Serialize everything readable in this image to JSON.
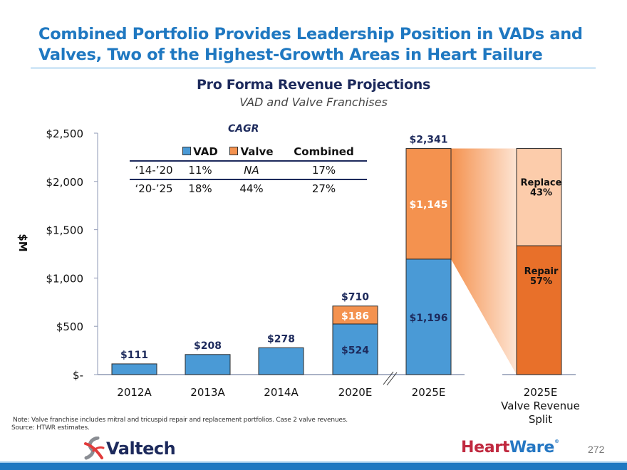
{
  "slide": {
    "title_line1": "Combined Portfolio Provides Leadership Position in VADs and",
    "title_line2": "Valves, Two of the Highest-Growth Areas in Heart Failure",
    "note": "Note: Valve franchise includes mitral and tricuspid repair and replacement portfolios. Case 2 valve revenues.",
    "source": "Source: HTWR estimates.",
    "logo_left": "Valtech",
    "logo_right_a": "Heart",
    "logo_right_b": "Ware",
    "logo_right_reg": "®",
    "page_number": "272"
  },
  "cagr": {
    "title": "CAGR",
    "headers": [
      "",
      "VAD",
      "Valve",
      "Combined"
    ],
    "rows": [
      [
        "‘14-’20",
        "11%",
        "NA",
        "17%"
      ],
      [
        "‘20-’25",
        "18%",
        "44%",
        "27%"
      ]
    ]
  },
  "colors": {
    "vad": "#4a9ad6",
    "valve": "#f4924f",
    "replace": "#fcccab",
    "repair": "#e8702a",
    "label_dark": "#1d2a5c",
    "axis": "#8e98b4"
  },
  "chart_data": [
    {
      "type": "bar",
      "stacked": true,
      "title": "Pro Forma Revenue Projections",
      "subtitle": "VAD and Valve Franchises",
      "ylabel": "$M",
      "xlabel": "",
      "ylim": [
        0,
        2500
      ],
      "yticks": [
        0,
        500,
        1000,
        1500,
        2000,
        2500
      ],
      "ytick_labels": [
        "$-",
        "$500",
        "$1,000",
        "$1,500",
        "$2,000",
        "$2,500"
      ],
      "categories": [
        "2012A",
        "2013A",
        "2014A",
        "2020E",
        "2025E"
      ],
      "series": [
        {
          "name": "VAD",
          "values": [
            111,
            208,
            278,
            524,
            1196
          ],
          "labels": [
            "",
            "",
            "",
            "$524",
            "$1,196"
          ]
        },
        {
          "name": "Valve",
          "values": [
            0,
            0,
            0,
            186,
            1145
          ],
          "labels": [
            "",
            "",
            "",
            "$186",
            "$1,145"
          ]
        }
      ],
      "totals": [
        111,
        208,
        278,
        710,
        2341
      ],
      "total_labels": [
        "$111",
        "$208",
        "$278",
        "$710",
        "$2,341"
      ],
      "axis_break_between": [
        "2020E",
        "2025E"
      ],
      "grid": false,
      "legend": "top-left (in CAGR table)"
    },
    {
      "type": "bar",
      "stacked": true,
      "title": "2025E Valve Revenue Split",
      "category_label": [
        "2025E",
        "Valve Revenue",
        "Split"
      ],
      "segments": [
        {
          "name": "Repair",
          "percent": 57,
          "label": "Repair",
          "value_label": "57%"
        },
        {
          "name": "Replace",
          "percent": 43,
          "label": "Replace",
          "value_label": "43%"
        }
      ],
      "source_segment": "2025E Valve ($1,145)"
    }
  ]
}
